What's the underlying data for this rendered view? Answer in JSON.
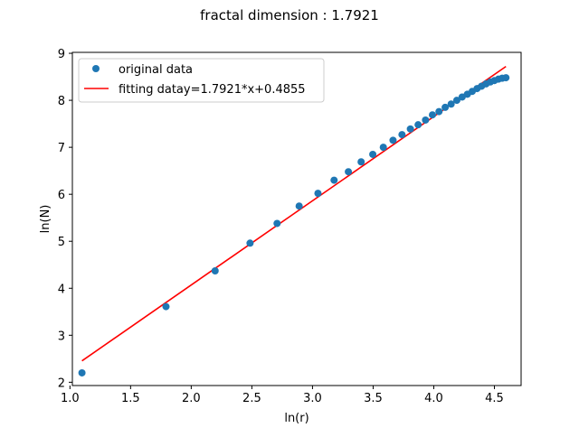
{
  "chart_data": {
    "type": "scatter",
    "title": "fractal dimension : 1.7921",
    "xlabel": "ln(r)",
    "ylabel": "ln(N)",
    "xlim": [
      1.02,
      4.72
    ],
    "ylim": [
      1.93,
      9.02
    ],
    "xticks": [
      1.0,
      1.5,
      2.0,
      2.5,
      3.0,
      3.5,
      4.0,
      4.5
    ],
    "xtick_labels": [
      "1.0",
      "1.5",
      "2.0",
      "2.5",
      "3.0",
      "3.5",
      "4.0",
      "4.5"
    ],
    "yticks": [
      2,
      3,
      4,
      5,
      6,
      7,
      8,
      9
    ],
    "ytick_labels": [
      "2",
      "3",
      "4",
      "5",
      "6",
      "7",
      "8",
      "9"
    ],
    "grid": false,
    "legend_position": "upper-left",
    "series": [
      {
        "name": "original data",
        "kind": "scatter",
        "color": "#1f77b4",
        "points": [
          [
            1.099,
            2.2
          ],
          [
            1.792,
            3.61
          ],
          [
            2.197,
            4.37
          ],
          [
            2.485,
            4.96
          ],
          [
            2.708,
            5.38
          ],
          [
            2.89,
            5.75
          ],
          [
            3.045,
            6.02
          ],
          [
            3.178,
            6.3
          ],
          [
            3.296,
            6.48
          ],
          [
            3.401,
            6.69
          ],
          [
            3.497,
            6.85
          ],
          [
            3.584,
            7.0
          ],
          [
            3.664,
            7.15
          ],
          [
            3.738,
            7.27
          ],
          [
            3.807,
            7.39
          ],
          [
            3.871,
            7.48
          ],
          [
            3.932,
            7.58
          ],
          [
            3.989,
            7.69
          ],
          [
            4.043,
            7.76
          ],
          [
            4.094,
            7.85
          ],
          [
            4.143,
            7.92
          ],
          [
            4.19,
            8.0
          ],
          [
            4.234,
            8.07
          ],
          [
            4.277,
            8.13
          ],
          [
            4.317,
            8.19
          ],
          [
            4.357,
            8.25
          ],
          [
            4.394,
            8.3
          ],
          [
            4.431,
            8.35
          ],
          [
            4.466,
            8.39
          ],
          [
            4.5,
            8.42
          ],
          [
            4.533,
            8.45
          ],
          [
            4.564,
            8.47
          ],
          [
            4.595,
            8.48
          ]
        ]
      },
      {
        "name": "fitting datay=1.7921*x+0.4855",
        "kind": "line",
        "color": "#ff0000",
        "slope": 1.7921,
        "intercept": 0.4855,
        "x_range": [
          1.099,
          4.595
        ]
      }
    ]
  }
}
